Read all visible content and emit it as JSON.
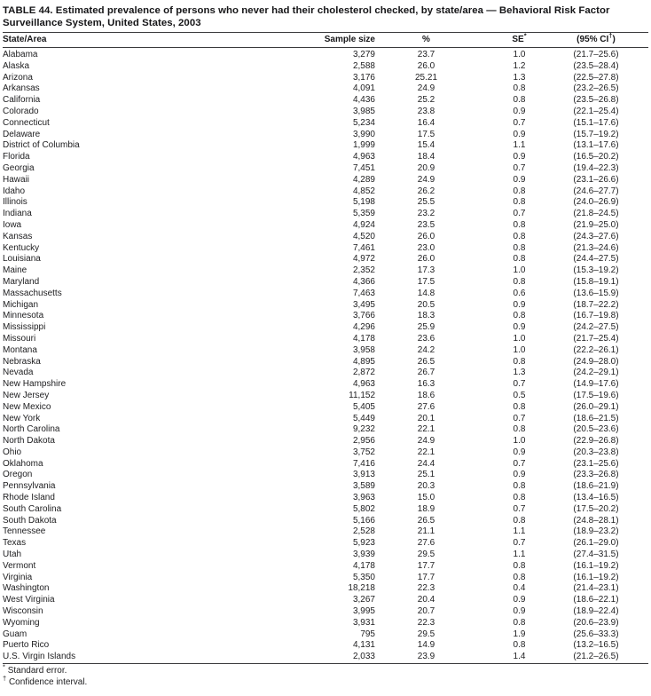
{
  "title": {
    "line1": "TABLE 44. Estimated prevalence of persons who never had their cholesterol checked, by state/area — Behavioral Risk Factor",
    "line2": "Surveillance System, United States, 2003"
  },
  "table": {
    "columns": [
      {
        "label": "State/Area"
      },
      {
        "label": "Sample size"
      },
      {
        "label": "%"
      },
      {
        "label": "SE",
        "sup": "*"
      },
      {
        "label": "(95% CI",
        "sup": "†",
        "after": ")"
      }
    ],
    "rows": [
      [
        "Alabama",
        "3,279",
        "23.7",
        "1.0",
        "(21.7–25.6)"
      ],
      [
        "Alaska",
        "2,588",
        "26.0",
        "1.2",
        "(23.5–28.4)"
      ],
      [
        "Arizona",
        "3,176",
        "25.21",
        "1.3",
        "(22.5–27.8)"
      ],
      [
        "Arkansas",
        "4,091",
        "24.9",
        "0.8",
        "(23.2–26.5)"
      ],
      [
        "California",
        "4,436",
        "25.2",
        "0.8",
        "(23.5–26.8)"
      ],
      [
        "Colorado",
        "3,985",
        "23.8",
        "0.9",
        "(22.1–25.4)"
      ],
      [
        "Connecticut",
        "5,234",
        "16.4",
        "0.7",
        "(15.1–17.6)"
      ],
      [
        "Delaware",
        "3,990",
        "17.5",
        "0.9",
        "(15.7–19.2)"
      ],
      [
        "District of Columbia",
        "1,999",
        "15.4",
        "1.1",
        "(13.1–17.6)"
      ],
      [
        "Florida",
        "4,963",
        "18.4",
        "0.9",
        "(16.5–20.2)"
      ],
      [
        "Georgia",
        "7,451",
        "20.9",
        "0.7",
        "(19.4–22.3)"
      ],
      [
        "Hawaii",
        "4,289",
        "24.9",
        "0.9",
        "(23.1–26.6)"
      ],
      [
        "Idaho",
        "4,852",
        "26.2",
        "0.8",
        "(24.6–27.7)"
      ],
      [
        "Illinois",
        "5,198",
        "25.5",
        "0.8",
        "(24.0–26.9)"
      ],
      [
        "Indiana",
        "5,359",
        "23.2",
        "0.7",
        "(21.8–24.5)"
      ],
      [
        "Iowa",
        "4,924",
        "23.5",
        "0.8",
        "(21.9–25.0)"
      ],
      [
        "Kansas",
        "4,520",
        "26.0",
        "0.8",
        "(24.3–27.6)"
      ],
      [
        "Kentucky",
        "7,461",
        "23.0",
        "0.8",
        "(21.3–24.6)"
      ],
      [
        "Louisiana",
        "4,972",
        "26.0",
        "0.8",
        "(24.4–27.5)"
      ],
      [
        "Maine",
        "2,352",
        "17.3",
        "1.0",
        "(15.3–19.2)"
      ],
      [
        "Maryland",
        "4,366",
        "17.5",
        "0.8",
        "(15.8–19.1)"
      ],
      [
        "Massachusetts",
        "7,463",
        "14.8",
        "0.6",
        "(13.6–15.9)"
      ],
      [
        "Michigan",
        "3,495",
        "20.5",
        "0.9",
        "(18.7–22.2)"
      ],
      [
        "Minnesota",
        "3,766",
        "18.3",
        "0.8",
        "(16.7–19.8)"
      ],
      [
        "Mississippi",
        "4,296",
        "25.9",
        "0.9",
        "(24.2–27.5)"
      ],
      [
        "Missouri",
        "4,178",
        "23.6",
        "1.0",
        "(21.7–25.4)"
      ],
      [
        "Montana",
        "3,958",
        "24.2",
        "1.0",
        "(22.2–26.1)"
      ],
      [
        "Nebraska",
        "4,895",
        "26.5",
        "0.8",
        "(24.9–28.0)"
      ],
      [
        "Nevada",
        "2,872",
        "26.7",
        "1.3",
        "(24.2–29.1)"
      ],
      [
        "New Hampshire",
        "4,963",
        "16.3",
        "0.7",
        "(14.9–17.6)"
      ],
      [
        "New Jersey",
        "11,152",
        "18.6",
        "0.5",
        "(17.5–19.6)"
      ],
      [
        "New Mexico",
        "5,405",
        "27.6",
        "0.8",
        "(26.0–29.1)"
      ],
      [
        "New York",
        "5,449",
        "20.1",
        "0.7",
        "(18.6–21.5)"
      ],
      [
        "North Carolina",
        "9,232",
        "22.1",
        "0.8",
        "(20.5–23.6)"
      ],
      [
        "North Dakota",
        "2,956",
        "24.9",
        "1.0",
        "(22.9–26.8)"
      ],
      [
        "Ohio",
        "3,752",
        "22.1",
        "0.9",
        "(20.3–23.8)"
      ],
      [
        "Oklahoma",
        "7,416",
        "24.4",
        "0.7",
        "(23.1–25.6)"
      ],
      [
        "Oregon",
        "3,913",
        "25.1",
        "0.9",
        "(23.3–26.8)"
      ],
      [
        "Pennsylvania",
        "3,589",
        "20.3",
        "0.8",
        "(18.6–21.9)"
      ],
      [
        "Rhode Island",
        "3,963",
        "15.0",
        "0.8",
        "(13.4–16.5)"
      ],
      [
        "South Carolina",
        "5,802",
        "18.9",
        "0.7",
        "(17.5–20.2)"
      ],
      [
        "South Dakota",
        "5,166",
        "26.5",
        "0.8",
        "(24.8–28.1)"
      ],
      [
        "Tennessee",
        "2,528",
        "21.1",
        "1.1",
        "(18.9–23.2)"
      ],
      [
        "Texas",
        "5,923",
        "27.6",
        "0.7",
        "(26.1–29.0)"
      ],
      [
        "Utah",
        "3,939",
        "29.5",
        "1.1",
        "(27.4–31.5)"
      ],
      [
        "Vermont",
        "4,178",
        "17.7",
        "0.8",
        "(16.1–19.2)"
      ],
      [
        "Virginia",
        "5,350",
        "17.7",
        "0.8",
        "(16.1–19.2)"
      ],
      [
        "Washington",
        "18,218",
        "22.3",
        "0.4",
        "(21.4–23.1)"
      ],
      [
        "West Virginia",
        "3,267",
        "20.4",
        "0.9",
        "(18.6–22.1)"
      ],
      [
        "Wisconsin",
        "3,995",
        "20.7",
        "0.9",
        "(18.9–22.4)"
      ],
      [
        "Wyoming",
        "3,931",
        "22.3",
        "0.8",
        "(20.6–23.9)"
      ],
      [
        "Guam",
        "795",
        "29.5",
        "1.9",
        "(25.6–33.3)"
      ],
      [
        "Puerto Rico",
        "4,131",
        "14.9",
        "0.8",
        "(13.2–16.5)"
      ],
      [
        "U.S. Virgin Islands",
        "2,033",
        "23.9",
        "1.4",
        "(21.2–26.5)"
      ]
    ]
  },
  "footnotes": [
    {
      "marker": "*",
      "text": "Standard error."
    },
    {
      "marker": "†",
      "text": "Confidence interval."
    }
  ]
}
